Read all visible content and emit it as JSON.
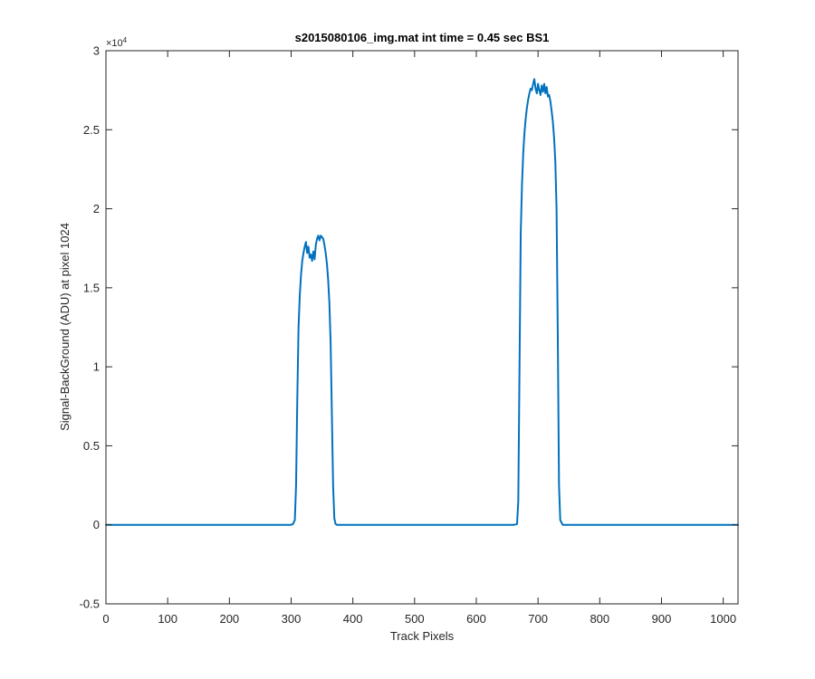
{
  "chart_data": {
    "type": "line",
    "title": "s2015080106_img.mat int time = 0.45 sec   BS1",
    "xlabel": "Track Pixels",
    "ylabel": "Signal-BackGround (ADU) at pixel 1024",
    "xlim": [
      0,
      1024
    ],
    "ylim": [
      -5000,
      30000
    ],
    "x_ticks": [
      0,
      100,
      200,
      300,
      400,
      500,
      600,
      700,
      800,
      900,
      1000
    ],
    "y_ticks": [
      -0.5,
      0,
      0.5,
      1,
      1.5,
      2,
      2.5,
      3
    ],
    "y_tick_labels": [
      "-0.5",
      "0",
      "0.5",
      "1",
      "1.5",
      "2",
      "2.5",
      "3"
    ],
    "y_multiplier": "×10",
    "y_multiplier_exp": "4",
    "grid": false,
    "series": [
      {
        "color": "#0072BD",
        "x": [
          0,
          100,
          200,
          300,
          303,
          306,
          308,
          310,
          312,
          314,
          316,
          318,
          320,
          322,
          324,
          326,
          328,
          330,
          332,
          334,
          336,
          338,
          340,
          342,
          344,
          346,
          348,
          350,
          352,
          354,
          356,
          358,
          360,
          362,
          364,
          366,
          368,
          370,
          372,
          374,
          376,
          400,
          500,
          600,
          660,
          666,
          668,
          670,
          672,
          674,
          676,
          678,
          680,
          682,
          684,
          686,
          688,
          690,
          692,
          694,
          696,
          698,
          700,
          702,
          704,
          706,
          708,
          710,
          712,
          714,
          716,
          718,
          720,
          722,
          724,
          726,
          728,
          730,
          732,
          734,
          736,
          740,
          800,
          900,
          1024
        ],
        "y": [
          0,
          0,
          0,
          0,
          50,
          300,
          2500,
          8000,
          12500,
          14500,
          15800,
          16700,
          17200,
          17600,
          17900,
          17200,
          17600,
          16900,
          17100,
          16700,
          17300,
          16800,
          17700,
          18100,
          18300,
          18000,
          18300,
          18200,
          18100,
          17700,
          17200,
          16500,
          15500,
          14000,
          11500,
          7000,
          2500,
          400,
          50,
          0,
          0,
          0,
          0,
          0,
          0,
          50,
          1500,
          10000,
          18500,
          21500,
          23500,
          24800,
          25700,
          26400,
          26900,
          27300,
          27600,
          27500,
          27900,
          28200,
          27600,
          27300,
          27900,
          27500,
          27200,
          27800,
          27400,
          27900,
          27300,
          27700,
          27100,
          27200,
          26800,
          26200,
          25500,
          24500,
          23000,
          20000,
          12000,
          2500,
          300,
          0,
          0,
          0,
          0
        ]
      }
    ]
  }
}
